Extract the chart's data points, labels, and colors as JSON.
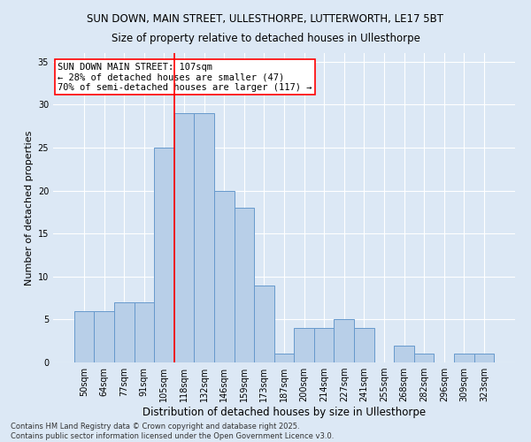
{
  "title": "SUN DOWN, MAIN STREET, ULLESTHORPE, LUTTERWORTH, LE17 5BT",
  "subtitle": "Size of property relative to detached houses in Ullesthorpe",
  "xlabel": "Distribution of detached houses by size in Ullesthorpe",
  "ylabel": "Number of detached properties",
  "categories": [
    "50sqm",
    "64sqm",
    "77sqm",
    "91sqm",
    "105sqm",
    "118sqm",
    "132sqm",
    "146sqm",
    "159sqm",
    "173sqm",
    "187sqm",
    "200sqm",
    "214sqm",
    "227sqm",
    "241sqm",
    "255sqm",
    "268sqm",
    "282sqm",
    "296sqm",
    "309sqm",
    "323sqm"
  ],
  "values": [
    6,
    6,
    7,
    7,
    25,
    29,
    29,
    20,
    18,
    9,
    1,
    4,
    4,
    5,
    4,
    0,
    2,
    1,
    0,
    1,
    1
  ],
  "bar_color": "#b8cfe8",
  "bar_edge_color": "#6699cc",
  "vline_x": 4.5,
  "vline_color": "red",
  "annotation_text": "SUN DOWN MAIN STREET: 107sqm\n← 28% of detached houses are smaller (47)\n70% of semi-detached houses are larger (117) →",
  "annotation_box_color": "white",
  "annotation_box_edge_color": "red",
  "ylim": [
    0,
    36
  ],
  "yticks": [
    0,
    5,
    10,
    15,
    20,
    25,
    30,
    35
  ],
  "bg_color": "#dce8f5",
  "footer": "Contains HM Land Registry data © Crown copyright and database right 2025.\nContains public sector information licensed under the Open Government Licence v3.0.",
  "title_fontsize": 8.5,
  "subtitle_fontsize": 8.5,
  "xlabel_fontsize": 8.5,
  "ylabel_fontsize": 8,
  "tick_fontsize": 7,
  "annotation_fontsize": 7.5,
  "footer_fontsize": 6
}
